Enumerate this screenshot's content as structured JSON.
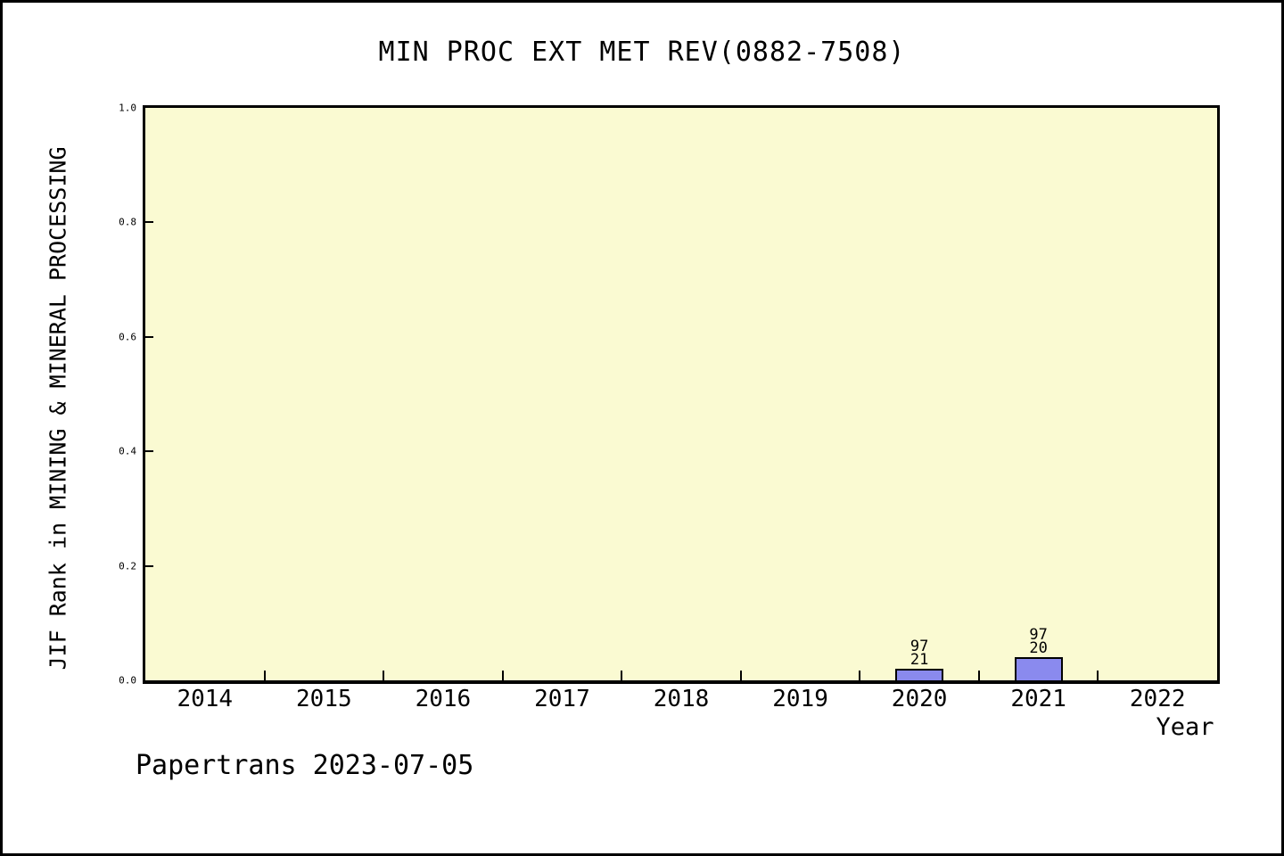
{
  "page": {
    "background_color": "#ffffff",
    "frame_color": "#000000"
  },
  "chart_data": {
    "type": "bar",
    "title": "MIN PROC EXT MET REV(0882-7508)",
    "xlabel": "Year",
    "ylabel": "JIF Rank in MINING & MINERAL PROCESSING",
    "categories": [
      "2014",
      "2015",
      "2016",
      "2017",
      "2018",
      "2019",
      "2020",
      "2021",
      "2022"
    ],
    "values": [
      null,
      null,
      null,
      null,
      null,
      null,
      0.02,
      0.04,
      null
    ],
    "bar_labels": [
      null,
      null,
      null,
      null,
      null,
      null,
      "97\n21",
      "97\n20",
      null
    ],
    "ylim": [
      0.0,
      1.0
    ],
    "yticks": [
      "1.0",
      "0.8",
      "0.6",
      "0.4",
      "0.2",
      "0.0"
    ],
    "grid": false,
    "legend": null,
    "plot_background_color": "#fafad2",
    "bar_fill_color": "#8a8aee",
    "bar_border_color": "#000000",
    "axis_color": "#000000"
  },
  "footer": {
    "text": "Papertrans 2023-07-05"
  }
}
